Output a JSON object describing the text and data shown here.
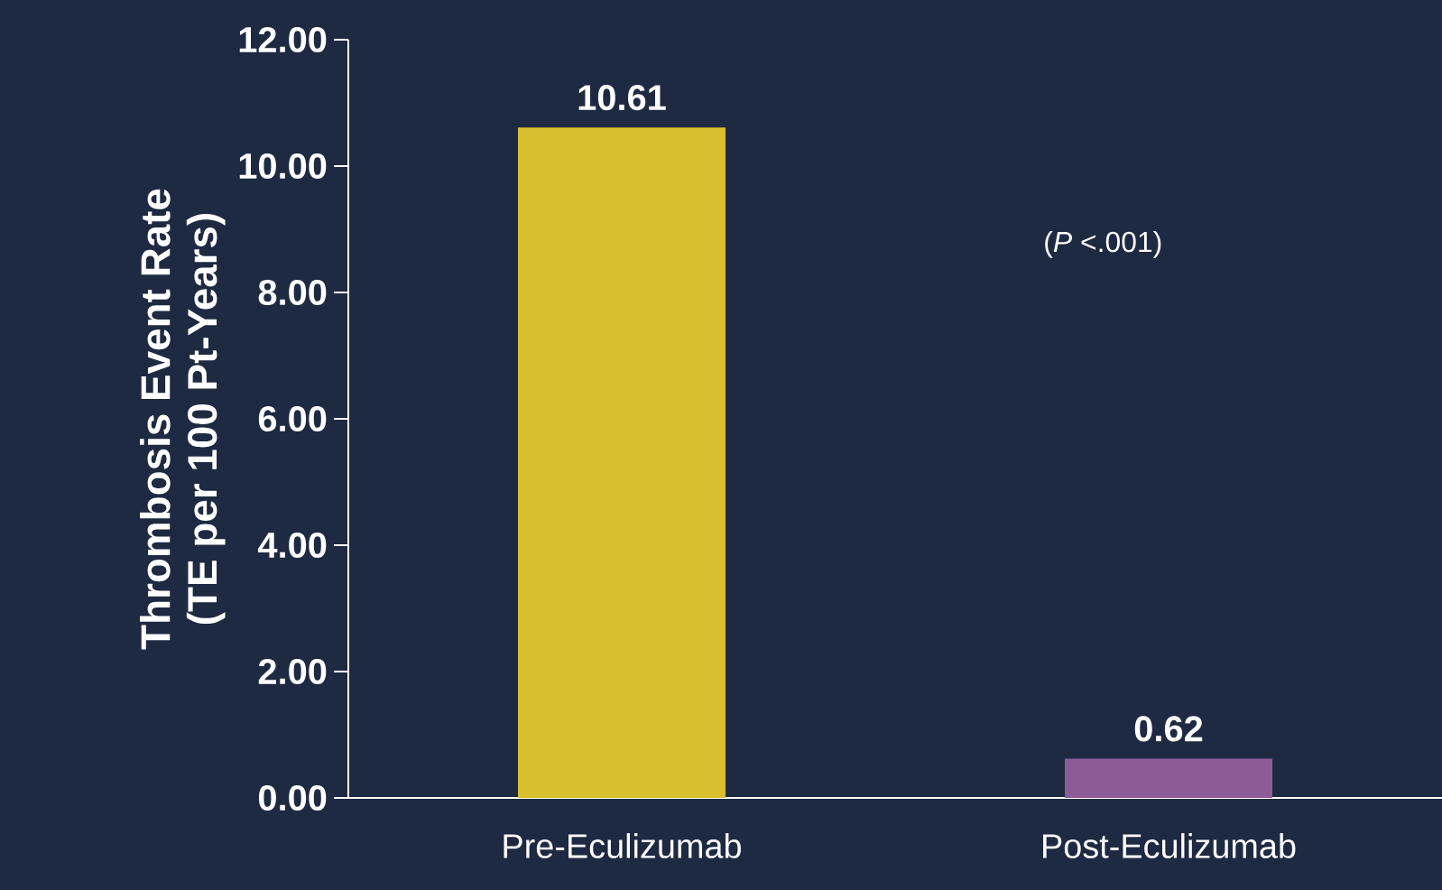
{
  "chart_data": {
    "type": "bar",
    "ylabel": "Thrombosis Event Rate\n(TE per 100 Pt-Years)",
    "categories": [
      "Pre-Eculizumab",
      "Post-Eculizumab"
    ],
    "values": [
      10.61,
      0.62
    ],
    "colors": [
      "#d9bf2e",
      "#8c5c96"
    ],
    "ylim": [
      0,
      12
    ],
    "yticks": [
      {
        "value": 0,
        "label": "0.00"
      },
      {
        "value": 2,
        "label": "2.00"
      },
      {
        "value": 4,
        "label": "4.00"
      },
      {
        "value": 6,
        "label": "6.00"
      },
      {
        "value": 8,
        "label": "8.00"
      },
      {
        "value": 10,
        "label": "10.00"
      },
      {
        "value": 12,
        "label": "12.00"
      }
    ],
    "data_labels": true,
    "annotations": [
      "(*P* <.001)"
    ]
  }
}
